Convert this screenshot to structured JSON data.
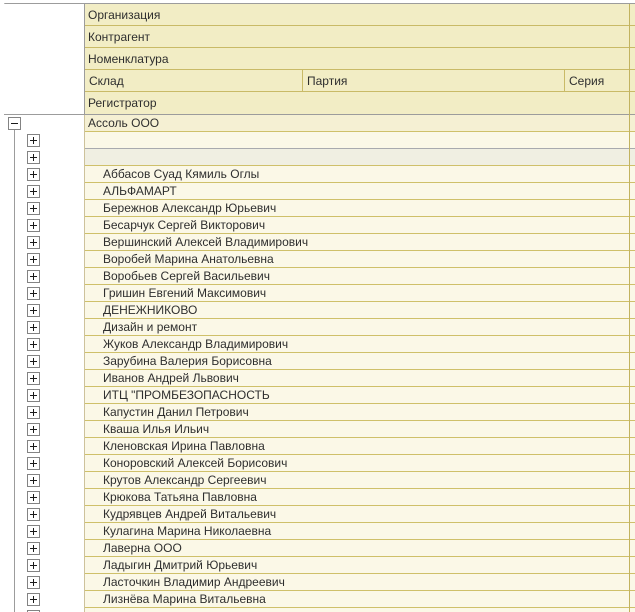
{
  "header": {
    "organization": "Организация",
    "counterparty": "Контрагент",
    "nomenclature": "Номенклатура",
    "warehouse": "Склад",
    "batch": "Партия",
    "series": "Серия",
    "registrar": "Регистратор"
  },
  "tree": {
    "root_label": "Ассоль ООО",
    "root_expanded": true,
    "selected_row_index": 1,
    "children": [
      "",
      "",
      "Аббасов Суад Кямиль Оглы",
      "АЛЬФАМАРТ",
      "Бережнов Александр Юрьевич",
      "Бесарчук Сергей Викторович",
      "Вершинский Алексей Владимирович",
      "Воробей Марина Анатольевна",
      "Воробьев Сергей Васильевич",
      "Гришин Евгений Максимович",
      "ДЕНЕЖНИКОВО",
      "Дизайн и ремонт",
      "Жуков Александр Владимирович",
      "Зарубина Валерия Борисовна",
      "Иванов Андрей Львович",
      "ИТЦ \"ПРОМБЕЗОПАСНОСТЬ",
      "Капустин Данил Петрович",
      "Кваша Илья Ильич",
      "Кленовская Ирина Павловна",
      "Коноровский Алексей Борисович",
      "Крутов Александр Сергеевич",
      "Крюкова Татьяна Павловна",
      "Кудрявцев Андрей Витальевич",
      "Кулагина Марина Николаевна",
      "Лаверна ООО",
      "Ладыгин Дмитрий Юрьевич",
      "Ласточкин Владимир Андреевич",
      "Лизнёва Марина Витальевна"
    ]
  },
  "icons": {
    "expand": "plus-icon",
    "collapse": "minus-icon"
  },
  "colors": {
    "header_bg": "#f2edc5",
    "row_bg": "#fbf8e7",
    "root_row_bg": "#f5f0d3",
    "selected_row_bg": "#f0efe2",
    "grid_line_tan": "#cfc06a",
    "header_grid_line": "#c9ba67",
    "frame_line_gray": "#9c9c9c",
    "text": "#2e2e2e"
  }
}
